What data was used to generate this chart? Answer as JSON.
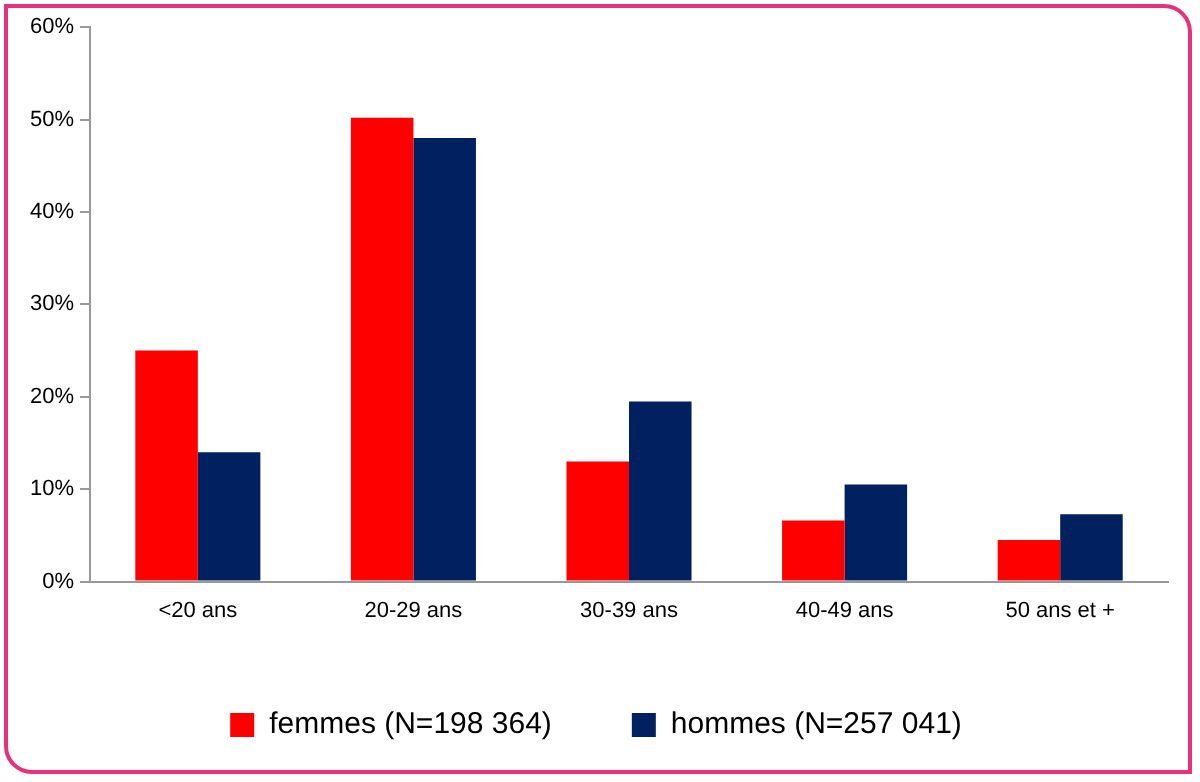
{
  "chart_data": {
    "type": "bar",
    "categories": [
      "<20 ans",
      "20-29 ans",
      "30-39 ans",
      "40-49 ans",
      "50 ans et +"
    ],
    "series": [
      {
        "name": "femmes (N=198 364)",
        "color": "#ff0000",
        "values": [
          25.0,
          50.2,
          13.0,
          6.6,
          4.5
        ]
      },
      {
        "name": "hommes (N=257 041)",
        "color": "#002060",
        "values": [
          14.0,
          48.0,
          19.5,
          10.5,
          7.3
        ]
      }
    ],
    "ylim": [
      0,
      60
    ],
    "yticks": [
      {
        "value": 0,
        "label": "0%"
      },
      {
        "value": 10,
        "label": "10%"
      },
      {
        "value": 20,
        "label": "20%"
      },
      {
        "value": 30,
        "label": "30%"
      },
      {
        "value": 40,
        "label": "40%"
      },
      {
        "value": 50,
        "label": "50%"
      },
      {
        "value": 60,
        "label": "60%"
      }
    ],
    "grid": false,
    "legend": "bottom"
  }
}
